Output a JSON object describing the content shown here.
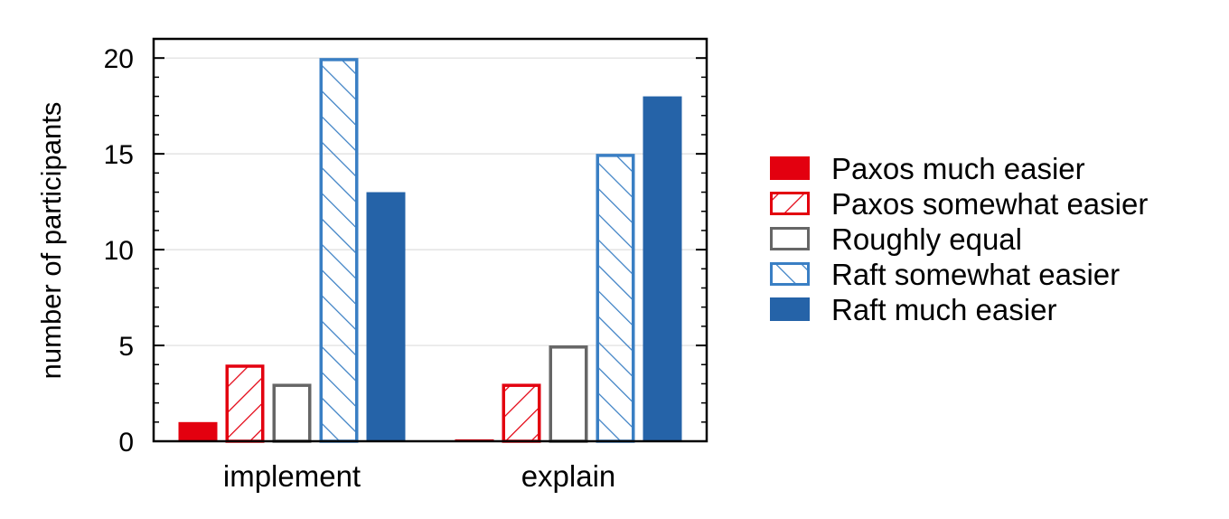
{
  "chart_data": {
    "type": "bar",
    "categories": [
      "implement",
      "explain"
    ],
    "series": [
      {
        "name": "Paxos much easier",
        "values": [
          1,
          0.1
        ],
        "color": "#e3000f",
        "style": "solid"
      },
      {
        "name": "Paxos somewhat easier",
        "values": [
          4,
          3
        ],
        "color": "#e3000f",
        "style": "hatch-forward"
      },
      {
        "name": "Roughly equal",
        "values": [
          3,
          5
        ],
        "color": "#666666",
        "style": "outline"
      },
      {
        "name": "Raft somewhat easier",
        "values": [
          20,
          15
        ],
        "color": "#3a7fc4",
        "style": "hatch-back"
      },
      {
        "name": "Raft much easier",
        "values": [
          13,
          18
        ],
        "color": "#2563a8",
        "style": "solid"
      }
    ],
    "xlabel": "",
    "ylabel": "number of participants",
    "ylim": [
      0,
      21
    ],
    "yticks": [
      0,
      5,
      10,
      15,
      20
    ],
    "grid": "horizontal",
    "legend_position": "right"
  }
}
